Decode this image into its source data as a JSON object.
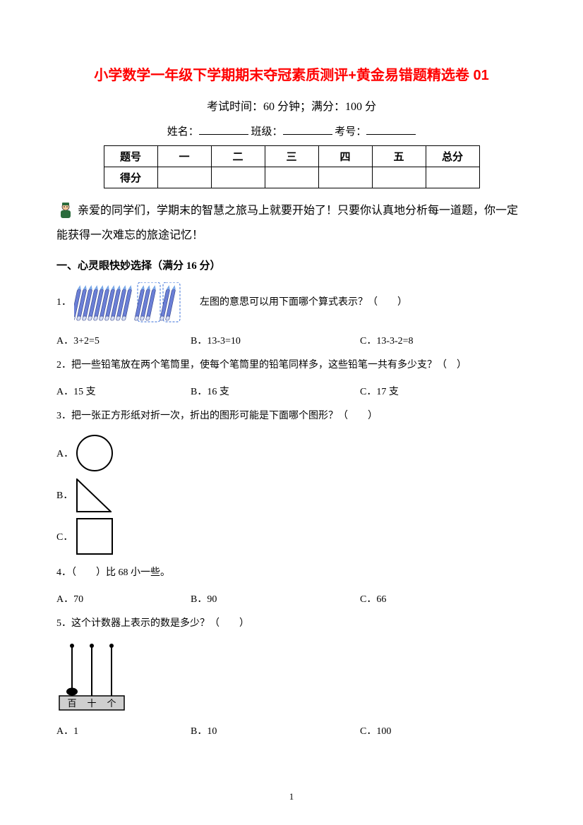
{
  "title": "小学数学一年级下学期期末夺冠素质测评+黄金易错题精选卷 01",
  "meta": "考试时间：60 分钟；满分：100 分",
  "fill_labels": {
    "name": "姓名：",
    "class": "班级：",
    "id": "考号："
  },
  "score_table": {
    "row1": [
      "题号",
      "一",
      "二",
      "三",
      "四",
      "五",
      "总分"
    ],
    "row2_label": "得分"
  },
  "intro": "亲爱的同学们，学期末的智慧之旅马上就要开始了！只要你认真地分析每一道题，你一定能获得一次难忘的旅途记忆！",
  "section1_head": "一、心灵眼快妙选择（满分 16 分）",
  "q1": {
    "suffix": "左图的意思可以用下面哪个算式表示？（　　）",
    "a": "A．3+2=5",
    "b": "B．13-3=10",
    "c": "C．13-3-2=8",
    "pencil_count_group1": 10,
    "pencil_count_group2": 3,
    "pencil_count_group3": 2,
    "pencil_color": "#6b7fd6",
    "pencil_tip": "#7aa8e8",
    "dash_color": "#3a6fd8"
  },
  "q2": {
    "text": "2．把一些铅笔放在两个笔筒里，使每个笔筒里的铅笔同样多，这些铅笔一共有多少支？（　）",
    "a": "A．15 支",
    "b": "B．16 支",
    "c": "C．17 支"
  },
  "q3": {
    "text": "3．把一张正方形纸对折一次，折出的图形可能是下面哪个图形？（　　）",
    "a": "A．",
    "b": "B．",
    "c": "C．"
  },
  "q4": {
    "text": "4．（　　）比 68 小一些。",
    "a": "A．70",
    "b": "B．90",
    "c": "C．66"
  },
  "q5": {
    "text": "5．这个计数器上表示的数是多少？（　　）",
    "a": "A．1",
    "b": "B．10",
    "c": "C．100",
    "labels": [
      "百",
      "十",
      "个"
    ],
    "rod_color": "#000000",
    "base_fill": "#cfcfcf",
    "bead_fill": "#000000"
  },
  "page_number": "1",
  "colors": {
    "title": "#ff0000",
    "text": "#000000",
    "bg": "#ffffff"
  }
}
